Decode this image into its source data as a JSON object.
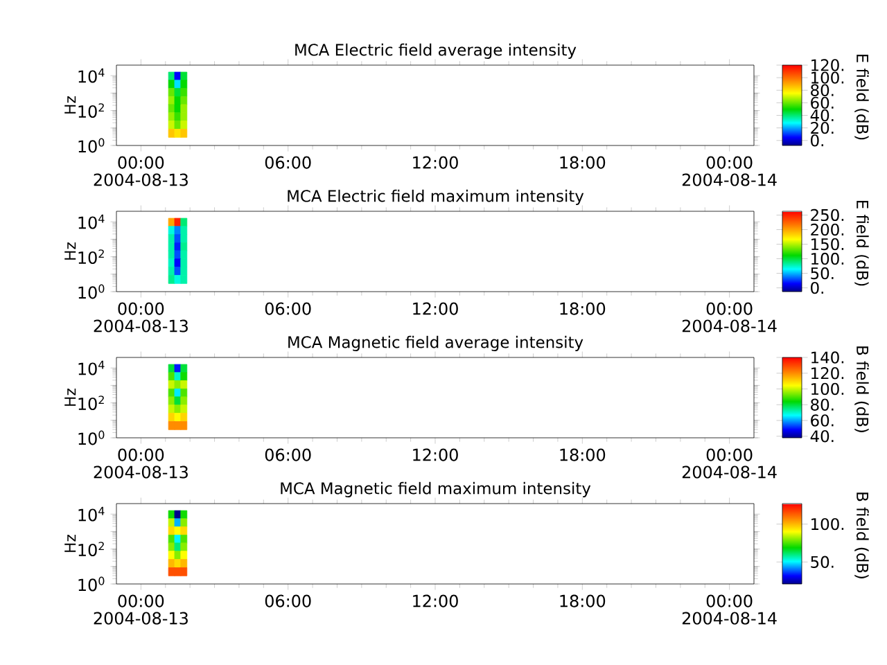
{
  "chart_data": [
    {
      "type": "scatter",
      "title": "MCA  Electric field average intensity",
      "ylabel": "Hz",
      "clabel": "E field (dB)",
      "log": "y",
      "marker": "square",
      "x": [
        "2004-08-13T01:15",
        "2004-08-13T01:30",
        "2004-08-13T01:45",
        "2004-08-13T01:15",
        "2004-08-13T01:30",
        "2004-08-13T01:45",
        "2004-08-13T01:15",
        "2004-08-13T01:30",
        "2004-08-13T01:45",
        "2004-08-13T01:15",
        "2004-08-13T01:30",
        "2004-08-13T01:45",
        "2004-08-13T01:15",
        "2004-08-13T01:30",
        "2004-08-13T01:45",
        "2004-08-13T01:15",
        "2004-08-13T01:30",
        "2004-08-13T01:45",
        "2004-08-13T01:15",
        "2004-08-13T01:30",
        "2004-08-13T01:45",
        "2004-08-13T01:15",
        "2004-08-13T01:30",
        "2004-08-13T01:45"
      ],
      "values": [
        9300,
        9300,
        9300,
        3200,
        3200,
        3200,
        1100,
        1100,
        1100,
        370,
        370,
        370,
        130,
        130,
        130,
        44,
        44,
        44,
        15,
        15,
        15,
        5,
        5,
        5
      ],
      "cvalues": [
        40,
        5,
        45,
        50,
        25,
        50,
        60,
        45,
        55,
        65,
        50,
        60,
        60,
        50,
        65,
        65,
        55,
        65,
        70,
        60,
        70,
        85,
        80,
        85
      ],
      "xlim": [
        "2004-08-12T23:00",
        "2004-08-14T01:00"
      ],
      "xticks": [
        {
          "value": "2004-08-13T00:00",
          "label": "00:00 2004-08-13"
        },
        {
          "value": "2004-08-13T06:00",
          "label": "06:00"
        },
        {
          "value": "2004-08-13T12:00",
          "label": "12:00"
        },
        {
          "value": "2004-08-13T18:00",
          "label": "18:00"
        },
        {
          "value": "2004-08-14T00:00",
          "label": "00:00 2004-08-14"
        }
      ],
      "ylim": [
        1,
        40000
      ],
      "yticks": [
        {
          "value": 1,
          "label": "10$^{0}$"
        },
        {
          "value": 10,
          "label": null
        },
        {
          "value": 100,
          "label": "10$^{2}$"
        },
        {
          "value": 1000,
          "label": null
        },
        {
          "value": 10000,
          "label": "10$^{4}$"
        }
      ],
      "clim": [
        -8,
        120
      ],
      "cticks": [
        {
          "value": 0,
          "label": "0."
        },
        {
          "value": 20,
          "label": "20."
        },
        {
          "value": 40,
          "label": "40."
        },
        {
          "value": 60,
          "label": "60."
        },
        {
          "value": 80,
          "label": "80."
        },
        {
          "value": 100,
          "label": "100."
        },
        {
          "value": 120,
          "label": "120."
        }
      ]
    },
    {
      "type": "scatter",
      "title": "MCA  Electric field maximum intensity",
      "ylabel": "Hz",
      "clabel": "E field (dB)",
      "log": "y",
      "marker": "square",
      "x": [
        "2004-08-13T01:15",
        "2004-08-13T01:30",
        "2004-08-13T01:45",
        "2004-08-13T01:15",
        "2004-08-13T01:30",
        "2004-08-13T01:45",
        "2004-08-13T01:15",
        "2004-08-13T01:30",
        "2004-08-13T01:45",
        "2004-08-13T01:15",
        "2004-08-13T01:30",
        "2004-08-13T01:45",
        "2004-08-13T01:15",
        "2004-08-13T01:30",
        "2004-08-13T01:45",
        "2004-08-13T01:15",
        "2004-08-13T01:30",
        "2004-08-13T01:45",
        "2004-08-13T01:15",
        "2004-08-13T01:30",
        "2004-08-13T01:45",
        "2004-08-13T01:15",
        "2004-08-13T01:30",
        "2004-08-13T01:45"
      ],
      "values": [
        9300,
        9300,
        9300,
        3200,
        3200,
        3200,
        1100,
        1100,
        1100,
        370,
        370,
        370,
        130,
        130,
        130,
        44,
        44,
        44,
        15,
        15,
        15,
        5,
        5,
        5
      ],
      "cvalues": [
        200,
        250,
        90,
        70,
        40,
        80,
        80,
        30,
        80,
        80,
        20,
        85,
        80,
        30,
        80,
        75,
        15,
        80,
        80,
        30,
        80,
        85,
        70,
        80
      ],
      "xlim": [
        "2004-08-12T23:00",
        "2004-08-14T01:00"
      ],
      "xticks": [
        {
          "value": "2004-08-13T00:00",
          "label": "00:00 2004-08-13"
        },
        {
          "value": "2004-08-13T06:00",
          "label": "06:00"
        },
        {
          "value": "2004-08-13T12:00",
          "label": "12:00"
        },
        {
          "value": "2004-08-13T18:00",
          "label": "18:00"
        },
        {
          "value": "2004-08-14T00:00",
          "label": "00:00 2004-08-14"
        }
      ],
      "ylim": [
        1,
        40000
      ],
      "yticks": [
        {
          "value": 1,
          "label": "10$^{0}$"
        },
        {
          "value": 10,
          "label": null
        },
        {
          "value": 100,
          "label": "10$^{2}$"
        },
        {
          "value": 1000,
          "label": null
        },
        {
          "value": 10000,
          "label": "10$^{4}$"
        }
      ],
      "clim": [
        -13,
        263
      ],
      "cticks": [
        {
          "value": 0,
          "label": "0."
        },
        {
          "value": 50,
          "label": "50."
        },
        {
          "value": 100,
          "label": "100."
        },
        {
          "value": 150,
          "label": "150."
        },
        {
          "value": 200,
          "label": "200."
        },
        {
          "value": 250,
          "label": "250."
        }
      ]
    },
    {
      "type": "scatter",
      "title": "MCA  Magnetic field average intensity",
      "ylabel": "Hz",
      "clabel": "B field (dB)",
      "log": "y",
      "marker": "square",
      "x": [
        "2004-08-13T01:15",
        "2004-08-13T01:30",
        "2004-08-13T01:45",
        "2004-08-13T01:15",
        "2004-08-13T01:30",
        "2004-08-13T01:45",
        "2004-08-13T01:15",
        "2004-08-13T01:30",
        "2004-08-13T01:45",
        "2004-08-13T01:15",
        "2004-08-13T01:30",
        "2004-08-13T01:45",
        "2004-08-13T01:15",
        "2004-08-13T01:30",
        "2004-08-13T01:45",
        "2004-08-13T01:15",
        "2004-08-13T01:30",
        "2004-08-13T01:45",
        "2004-08-13T01:15",
        "2004-08-13T01:30",
        "2004-08-13T01:45",
        "2004-08-13T01:15",
        "2004-08-13T01:30",
        "2004-08-13T01:45"
      ],
      "values": [
        9300,
        9300,
        9300,
        3200,
        3200,
        3200,
        1100,
        1100,
        1100,
        370,
        370,
        370,
        130,
        130,
        130,
        44,
        44,
        44,
        15,
        15,
        15,
        5,
        5,
        5
      ],
      "cvalues": [
        80,
        50,
        80,
        90,
        70,
        85,
        100,
        95,
        100,
        90,
        65,
        90,
        95,
        80,
        95,
        100,
        95,
        100,
        110,
        105,
        110,
        120,
        120,
        120
      ],
      "xlim": [
        "2004-08-12T23:00",
        "2004-08-14T01:00"
      ],
      "xticks": [
        {
          "value": "2004-08-13T00:00",
          "label": "00:00 2004-08-13"
        },
        {
          "value": "2004-08-13T06:00",
          "label": "06:00"
        },
        {
          "value": "2004-08-13T12:00",
          "label": "12:00"
        },
        {
          "value": "2004-08-13T18:00",
          "label": "18:00"
        },
        {
          "value": "2004-08-14T00:00",
          "label": "00:00 2004-08-14"
        }
      ],
      "ylim": [
        1,
        40000
      ],
      "yticks": [
        {
          "value": 1,
          "label": "10$^{0}$"
        },
        {
          "value": 10,
          "label": null
        },
        {
          "value": 100,
          "label": "10$^{2}$"
        },
        {
          "value": 1000,
          "label": null
        },
        {
          "value": 10000,
          "label": "10$^{4}$"
        }
      ],
      "clim": [
        38,
        140
      ],
      "cticks": [
        {
          "value": 40,
          "label": "40."
        },
        {
          "value": 60,
          "label": "60."
        },
        {
          "value": 80,
          "label": "80."
        },
        {
          "value": 100,
          "label": "100."
        },
        {
          "value": 120,
          "label": "120."
        },
        {
          "value": 140,
          "label": "140."
        }
      ]
    },
    {
      "type": "scatter",
      "title": "MCA  Magnetic field maximum intensity",
      "ylabel": "Hz",
      "clabel": "B field (dB)",
      "log": "y",
      "marker": "square",
      "x": [
        "2004-08-13T01:15",
        "2004-08-13T01:30",
        "2004-08-13T01:45",
        "2004-08-13T01:15",
        "2004-08-13T01:30",
        "2004-08-13T01:45",
        "2004-08-13T01:15",
        "2004-08-13T01:30",
        "2004-08-13T01:45",
        "2004-08-13T01:15",
        "2004-08-13T01:30",
        "2004-08-13T01:45",
        "2004-08-13T01:15",
        "2004-08-13T01:30",
        "2004-08-13T01:45",
        "2004-08-13T01:15",
        "2004-08-13T01:30",
        "2004-08-13T01:45",
        "2004-08-13T01:15",
        "2004-08-13T01:30",
        "2004-08-13T01:45",
        "2004-08-13T01:15",
        "2004-08-13T01:30",
        "2004-08-13T01:45"
      ],
      "values": [
        9300,
        9300,
        9300,
        3200,
        3200,
        3200,
        1100,
        1100,
        1100,
        370,
        370,
        370,
        130,
        130,
        130,
        44,
        44,
        44,
        15,
        15,
        15,
        5,
        5,
        5
      ],
      "cvalues": [
        70,
        20,
        70,
        85,
        45,
        80,
        95,
        90,
        95,
        75,
        50,
        75,
        80,
        60,
        80,
        90,
        80,
        90,
        100,
        95,
        100,
        115,
        115,
        115
      ],
      "xlim": [
        "2004-08-12T23:00",
        "2004-08-14T01:00"
      ],
      "xticks": [
        {
          "value": "2004-08-13T00:00",
          "label": "00:00 2004-08-13"
        },
        {
          "value": "2004-08-13T06:00",
          "label": "06:00"
        },
        {
          "value": "2004-08-13T12:00",
          "label": "12:00"
        },
        {
          "value": "2004-08-13T18:00",
          "label": "18:00"
        },
        {
          "value": "2004-08-14T00:00",
          "label": "00:00 2004-08-14"
        }
      ],
      "ylim": [
        1,
        40000
      ],
      "yticks": [
        {
          "value": 1,
          "label": "10$^{0}$"
        },
        {
          "value": 10,
          "label": null
        },
        {
          "value": 100,
          "label": "10$^{2}$"
        },
        {
          "value": 1000,
          "label": null
        },
        {
          "value": 10000,
          "label": "10$^{4}$"
        }
      ],
      "clim": [
        21,
        127
      ],
      "cticks": [
        {
          "value": 50,
          "label": "50."
        },
        {
          "value": 100,
          "label": "100."
        }
      ]
    }
  ]
}
